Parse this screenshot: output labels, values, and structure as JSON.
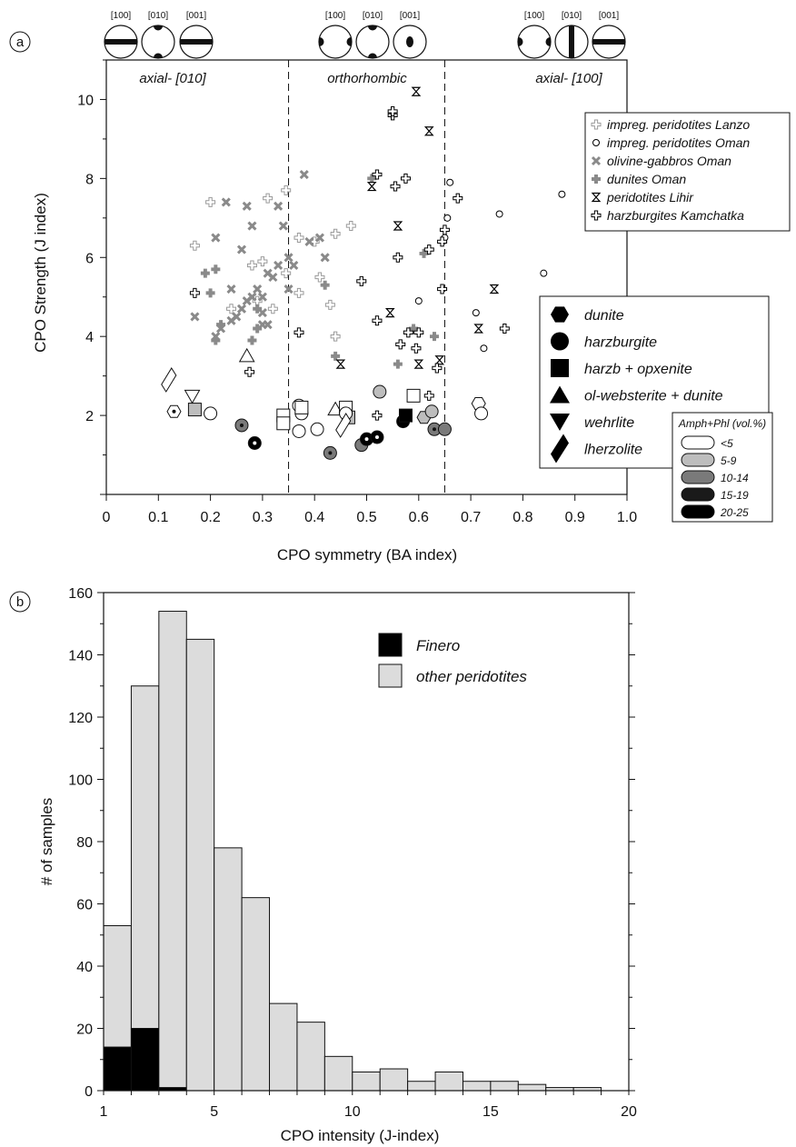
{
  "chart_data": [
    {
      "type": "scatter",
      "panel_label": "a",
      "xlabel": "CPO symmetry (BA index)",
      "ylabel": "CPO Strength (J index)",
      "xlim": [
        0,
        1.0
      ],
      "ylim": [
        0,
        11
      ],
      "x_ticks": [
        "0",
        "0.1",
        "0.2",
        "0.3",
        "0.4",
        "0.5",
        "0.6",
        "0.7",
        "0.8",
        "0.9",
        "1.0"
      ],
      "y_ticks": [
        "2",
        "4",
        "6",
        "8",
        "10"
      ],
      "boundaries": [
        0.35,
        0.65
      ],
      "regions": [
        "axial- [010]",
        "orthorhombic",
        "axial- [100]"
      ],
      "pole_labels": [
        "[100]",
        "[010]",
        "[001]"
      ],
      "legend_literature": [
        {
          "name": "impreg. peridotites Lanzo",
          "marker": "plus-open",
          "color": "#9a9a9a"
        },
        {
          "name": "impreg. peridotites Oman",
          "marker": "circle-small",
          "color": "#000000"
        },
        {
          "name": "olivine-gabbros Oman",
          "marker": "cross",
          "color": "#8a8a8a"
        },
        {
          "name": "dunites Oman",
          "marker": "plus",
          "color": "#8a8a8a"
        },
        {
          "name": "peridotites Lihir",
          "marker": "hourglass",
          "color": "#000000"
        },
        {
          "name": "harzburgites Kamchatka",
          "marker": "plus-open",
          "color": "#000000"
        }
      ],
      "legend_lithology": [
        "dunite",
        "harzburgite",
        "harzb + opxenite",
        "ol-websterite + dunite",
        "wehrlite",
        "lherzolite"
      ],
      "legend_amph": {
        "title": "Amph+Phl (vol.%)",
        "classes": [
          {
            "label": "<5",
            "color": "#ffffff"
          },
          {
            "label": "5-9",
            "color": "#bdbdbd"
          },
          {
            "label": "10-14",
            "color": "#7a7a7a"
          },
          {
            "label": "15-19",
            "color": "#1a1a1a"
          },
          {
            "label": "20-25",
            "color": "#000000"
          }
        ]
      },
      "series": [
        {
          "name": "impreg. peridotites Lanzo",
          "points": [
            [
              0.17,
              6.3
            ],
            [
              0.2,
              7.4
            ],
            [
              0.24,
              4.7
            ],
            [
              0.28,
              5.8
            ],
            [
              0.29,
              4.9
            ],
            [
              0.31,
              7.5
            ],
            [
              0.32,
              4.7
            ],
            [
              0.345,
              7.7
            ],
            [
              0.345,
              5.6
            ],
            [
              0.37,
              6.5
            ],
            [
              0.37,
              5.1
            ],
            [
              0.4,
              6.4
            ],
            [
              0.41,
              5.5
            ],
            [
              0.43,
              4.8
            ],
            [
              0.44,
              6.6
            ],
            [
              0.44,
              4.0
            ],
            [
              0.47,
              6.8
            ],
            [
              0.3,
              5.9
            ]
          ]
        },
        {
          "name": "impreg. peridotites Oman",
          "points": [
            [
              0.66,
              7.9
            ],
            [
              0.655,
              7.0
            ],
            [
              0.65,
              6.5
            ],
            [
              0.6,
              4.9
            ],
            [
              0.71,
              4.6
            ],
            [
              0.725,
              3.7
            ],
            [
              0.755,
              7.1
            ],
            [
              0.84,
              5.6
            ],
            [
              0.875,
              7.6
            ]
          ]
        },
        {
          "name": "olivine-gabbros Oman",
          "points": [
            [
              0.21,
              6.5
            ],
            [
              0.23,
              7.4
            ],
            [
              0.26,
              6.2
            ],
            [
              0.27,
              7.3
            ],
            [
              0.28,
              6.8
            ],
            [
              0.29,
              5.2
            ],
            [
              0.3,
              5.0
            ],
            [
              0.31,
              5.6
            ],
            [
              0.32,
              5.5
            ],
            [
              0.33,
              7.3
            ],
            [
              0.34,
              6.8
            ],
            [
              0.35,
              6.0
            ],
            [
              0.36,
              5.8
            ],
            [
              0.38,
              8.1
            ],
            [
              0.39,
              6.4
            ],
            [
              0.41,
              6.5
            ],
            [
              0.33,
              5.8
            ],
            [
              0.35,
              5.2
            ],
            [
              0.17,
              4.5
            ],
            [
              0.21,
              4.0
            ],
            [
              0.22,
              4.2
            ],
            [
              0.24,
              5.2
            ],
            [
              0.25,
              4.5
            ],
            [
              0.26,
              4.7
            ],
            [
              0.27,
              4.9
            ],
            [
              0.28,
              5.0
            ],
            [
              0.3,
              4.3
            ],
            [
              0.31,
              4.3
            ],
            [
              0.3,
              4.6
            ],
            [
              0.24,
              4.4
            ],
            [
              0.42,
              6.0
            ]
          ]
        },
        {
          "name": "dunites Oman",
          "points": [
            [
              0.19,
              5.6
            ],
            [
              0.2,
              5.1
            ],
            [
              0.21,
              5.7
            ],
            [
              0.21,
              3.9
            ],
            [
              0.22,
              4.3
            ],
            [
              0.28,
              3.9
            ],
            [
              0.29,
              4.7
            ],
            [
              0.29,
              4.2
            ],
            [
              0.44,
              3.5
            ],
            [
              0.42,
              5.3
            ],
            [
              0.51,
              8.0
            ],
            [
              0.56,
              3.3
            ],
            [
              0.59,
              4.2
            ],
            [
              0.61,
              6.1
            ],
            [
              0.63,
              4.0
            ]
          ]
        },
        {
          "name": "peridotites Lihir",
          "points": [
            [
              0.595,
              10.2
            ],
            [
              0.62,
              9.2
            ],
            [
              0.51,
              7.8
            ],
            [
              0.56,
              6.8
            ],
            [
              0.545,
              4.6
            ],
            [
              0.6,
              3.3
            ],
            [
              0.64,
              3.4
            ],
            [
              0.45,
              3.3
            ],
            [
              0.715,
              4.2
            ],
            [
              0.745,
              5.2
            ]
          ]
        },
        {
          "name": "harzburgites Kamchatka",
          "points": [
            [
              0.55,
              9.6
            ],
            [
              0.55,
              9.7
            ],
            [
              0.52,
              8.1
            ],
            [
              0.575,
              8.0
            ],
            [
              0.555,
              7.8
            ],
            [
              0.675,
              7.5
            ],
            [
              0.65,
              6.7
            ],
            [
              0.645,
              6.4
            ],
            [
              0.56,
              6.0
            ],
            [
              0.62,
              6.2
            ],
            [
              0.49,
              5.4
            ],
            [
              0.645,
              5.2
            ],
            [
              0.52,
              4.4
            ],
            [
              0.58,
              4.1
            ],
            [
              0.6,
              4.1
            ],
            [
              0.565,
              3.8
            ],
            [
              0.595,
              3.7
            ],
            [
              0.635,
              3.2
            ],
            [
              0.62,
              2.5
            ],
            [
              0.52,
              2.0
            ],
            [
              0.765,
              4.2
            ],
            [
              0.37,
              4.1
            ],
            [
              0.275,
              3.1
            ],
            [
              0.17,
              5.1
            ]
          ]
        },
        {
          "name": "Finero",
          "points": [
            {
              "x": 0.13,
              "y": 2.1,
              "shape": "hexagon",
              "amph": "<5",
              "dot": true
            },
            {
              "x": 0.2,
              "y": 2.05,
              "shape": "circle",
              "amph": "<5"
            },
            {
              "x": 0.17,
              "y": 2.15,
              "shape": "square",
              "amph": "5-9"
            },
            {
              "x": 0.165,
              "y": 2.5,
              "shape": "triangle-down",
              "amph": "<5"
            },
            {
              "x": 0.12,
              "y": 2.9,
              "shape": "lozenge",
              "amph": "<5"
            },
            {
              "x": 0.26,
              "y": 1.75,
              "shape": "circle",
              "amph": "10-14",
              "dot": true
            },
            {
              "x": 0.285,
              "y": 1.3,
              "shape": "circle",
              "amph": "20-25",
              "dot": true
            },
            {
              "x": 0.27,
              "y": 3.5,
              "shape": "triangle-up",
              "amph": "<5"
            },
            {
              "x": 0.34,
              "y": 2.0,
              "shape": "square",
              "amph": "<5"
            },
            {
              "x": 0.34,
              "y": 1.8,
              "shape": "square",
              "amph": "<5"
            },
            {
              "x": 0.37,
              "y": 2.25,
              "shape": "circle",
              "amph": "<5"
            },
            {
              "x": 0.375,
              "y": 2.05,
              "shape": "circle",
              "amph": "<5"
            },
            {
              "x": 0.37,
              "y": 1.6,
              "shape": "circle",
              "amph": "<5"
            },
            {
              "x": 0.375,
              "y": 2.2,
              "shape": "square",
              "amph": "<5"
            },
            {
              "x": 0.405,
              "y": 1.65,
              "shape": "circle",
              "amph": "<5"
            },
            {
              "x": 0.43,
              "y": 1.05,
              "shape": "circle",
              "amph": "10-14",
              "dot": true
            },
            {
              "x": 0.44,
              "y": 2.15,
              "shape": "triangle-up",
              "amph": "<5"
            },
            {
              "x": 0.46,
              "y": 2.2,
              "shape": "square",
              "amph": "<5"
            },
            {
              "x": 0.465,
              "y": 1.95,
              "shape": "square",
              "amph": "5-9"
            },
            {
              "x": 0.46,
              "y": 2.05,
              "shape": "circle",
              "amph": "<5"
            },
            {
              "x": 0.455,
              "y": 1.75,
              "shape": "lozenge",
              "amph": "<5"
            },
            {
              "x": 0.49,
              "y": 1.25,
              "shape": "circle",
              "amph": "10-14"
            },
            {
              "x": 0.5,
              "y": 1.4,
              "shape": "circle",
              "amph": "20-25",
              "dot": true
            },
            {
              "x": 0.52,
              "y": 1.45,
              "shape": "circle",
              "amph": "20-25",
              "dot": true
            },
            {
              "x": 0.525,
              "y": 2.6,
              "shape": "circle",
              "amph": "5-9"
            },
            {
              "x": 0.57,
              "y": 1.85,
              "shape": "circle",
              "amph": "20-25"
            },
            {
              "x": 0.575,
              "y": 2.0,
              "shape": "square",
              "amph": "20-25"
            },
            {
              "x": 0.59,
              "y": 2.5,
              "shape": "square",
              "amph": "<5"
            },
            {
              "x": 0.61,
              "y": 1.95,
              "shape": "hexagon",
              "amph": "5-9"
            },
            {
              "x": 0.625,
              "y": 2.1,
              "shape": "circle",
              "amph": "5-9"
            },
            {
              "x": 0.63,
              "y": 1.65,
              "shape": "circle",
              "amph": "10-14",
              "dot": true
            },
            {
              "x": 0.65,
              "y": 1.65,
              "shape": "circle",
              "amph": "10-14"
            },
            {
              "x": 0.715,
              "y": 2.3,
              "shape": "hexagon",
              "amph": "<5"
            },
            {
              "x": 0.72,
              "y": 2.05,
              "shape": "circle",
              "amph": "<5"
            }
          ]
        }
      ]
    },
    {
      "type": "bar",
      "panel_label": "b",
      "xlabel": "CPO intensity (J-index)",
      "ylabel": "# of samples",
      "xlim": [
        1,
        20
      ],
      "ylim": [
        0,
        160
      ],
      "x_ticks": [
        "1",
        "5",
        "10",
        "15",
        "20"
      ],
      "y_ticks": [
        "0",
        "20",
        "40",
        "60",
        "80",
        "100",
        "120",
        "140",
        "160"
      ],
      "bin_width": 1,
      "bin_starts": [
        1,
        2,
        3,
        4,
        5,
        6,
        7,
        8,
        9,
        10,
        11,
        12,
        13,
        14,
        15,
        16,
        17,
        18
      ],
      "series": [
        {
          "name": "Finero",
          "color": "#000000",
          "values": [
            14,
            20,
            1,
            0,
            0,
            0,
            0,
            0,
            0,
            0,
            0,
            0,
            0,
            0,
            0,
            0,
            0,
            0
          ]
        },
        {
          "name": "other peridotites",
          "color": "#dcdcdc",
          "values": [
            53,
            130,
            154,
            145,
            78,
            62,
            28,
            22,
            11,
            6,
            7,
            3,
            6,
            3,
            3,
            2,
            1,
            1
          ]
        }
      ],
      "legend": [
        "Finero",
        "other peridotites"
      ]
    }
  ]
}
